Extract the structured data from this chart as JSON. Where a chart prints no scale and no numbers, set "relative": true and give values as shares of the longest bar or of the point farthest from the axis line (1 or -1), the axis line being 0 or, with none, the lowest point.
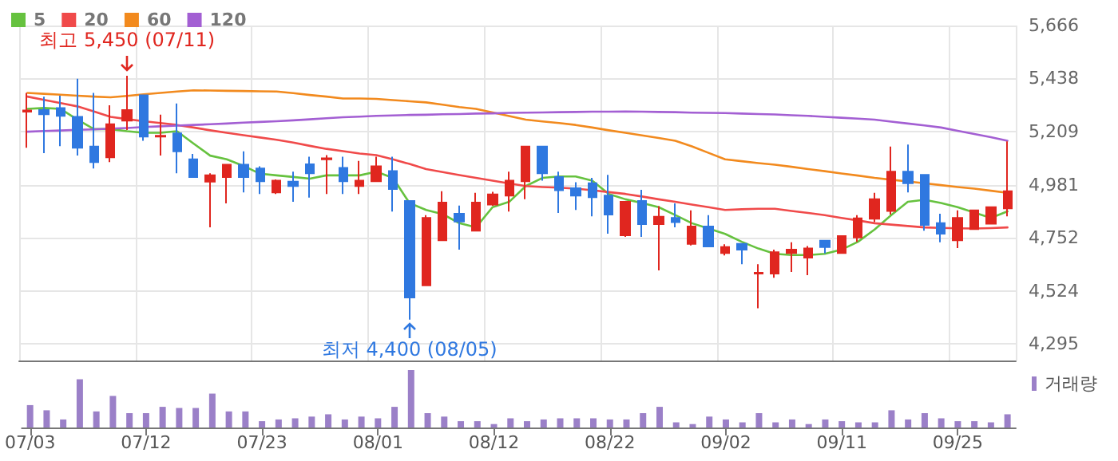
{
  "chart_data": [
    {
      "type": "candlestick",
      "categories": [
        null,
        null,
        null,
        null,
        null,
        null,
        null,
        null,
        null,
        null,
        null,
        null,
        null,
        null,
        null,
        null,
        null,
        null,
        null,
        null,
        null,
        null,
        null,
        null,
        null,
        null,
        null,
        null,
        null,
        null,
        null,
        null,
        null,
        null,
        null,
        null,
        null,
        null,
        null,
        null,
        null,
        null,
        null,
        null,
        null,
        null,
        null,
        null,
        null,
        null,
        null,
        null,
        null,
        null,
        null,
        null,
        null,
        null,
        null,
        null
      ],
      "ohlc": [
        [
          5295,
          5376,
          5140,
          5300
        ],
        [
          5302,
          5360,
          5117,
          5284
        ],
        [
          5311,
          5364,
          5147,
          5277
        ],
        [
          5273,
          5437,
          5106,
          5140
        ],
        [
          5145,
          5376,
          5051,
          5078
        ],
        [
          5099,
          5323,
          5078,
          5241
        ],
        [
          5257,
          5450,
          5216,
          5302
        ],
        [
          5366,
          5369,
          5170,
          5188
        ],
        [
          5188,
          5282,
          5106,
          5191
        ],
        [
          5202,
          5330,
          5030,
          5124
        ],
        [
          5090,
          5113,
          5010,
          5014
        ],
        [
          4994,
          5030,
          4797,
          5021
        ],
        [
          5014,
          5070,
          4900,
          5067
        ],
        [
          5067,
          5124,
          4948,
          5014
        ],
        [
          5051,
          5060,
          4941,
          4996
        ],
        [
          4948,
          5003,
          4941,
          4998
        ],
        [
          4994,
          5037,
          4907,
          4975
        ],
        [
          5069,
          5101,
          4925,
          5030
        ],
        [
          5090,
          5108,
          4941,
          5094
        ],
        [
          5053,
          5101,
          4941,
          4996
        ],
        [
          4975,
          5083,
          4941,
          4998
        ],
        [
          4996,
          5101,
          4994,
          5060
        ],
        [
          5039,
          5101,
          4865,
          4962
        ],
        [
          4911,
          4911,
          4400,
          4495
        ],
        [
          4548,
          4850,
          4548,
          4838
        ],
        [
          4742,
          4953,
          4742,
          4904
        ],
        [
          4856,
          4891,
          4701,
          4822
        ],
        [
          4783,
          4946,
          4783,
          4904
        ],
        [
          4895,
          4950,
          4890,
          4939
        ],
        [
          4934,
          5037,
          4865,
          4998
        ],
        [
          4996,
          5145,
          4918,
          5145
        ],
        [
          5145,
          5145,
          4998,
          5030
        ],
        [
          5014,
          5037,
          4859,
          4957
        ],
        [
          4966,
          4991,
          4872,
          4934
        ],
        [
          4987,
          5010,
          4845,
          4927
        ],
        [
          4934,
          5023,
          4770,
          4852
        ],
        [
          4763,
          4907,
          4756,
          4907
        ],
        [
          4911,
          4959,
          4756,
          4811
        ],
        [
          4811,
          4888,
          4612,
          4843
        ],
        [
          4838,
          4900,
          4797,
          4820
        ],
        [
          4726,
          4870,
          4719,
          4801
        ],
        [
          4801,
          4850,
          4715,
          4715
        ],
        [
          4687,
          4724,
          4676,
          4712
        ],
        [
          4726,
          4726,
          4639,
          4701
        ],
        [
          4598,
          4639,
          4449,
          4602
        ],
        [
          4598,
          4701,
          4580,
          4690
        ],
        [
          4687,
          4733,
          4605,
          4701
        ],
        [
          4667,
          4717,
          4591,
          4706
        ],
        [
          4740,
          4740,
          4685,
          4712
        ],
        [
          4687,
          4760,
          4687,
          4760
        ],
        [
          4754,
          4850,
          4735,
          4836
        ],
        [
          4834,
          4946,
          4820,
          4918
        ],
        [
          4868,
          5145,
          4852,
          5037
        ],
        [
          5037,
          5154,
          4948,
          4987
        ],
        [
          5023,
          5023,
          4783,
          4808
        ],
        [
          4815,
          4856,
          4733,
          4770
        ],
        [
          4742,
          4870,
          4708,
          4838
        ],
        [
          4790,
          4870,
          4790,
          4870
        ],
        [
          4813,
          4884,
          4813,
          4884
        ],
        [
          4879,
          5167,
          4845,
          4953
        ]
      ],
      "colors": [
        "#e0261f",
        "#2f78e0",
        "#2f78e0",
        "#2f78e0",
        "#2f78e0",
        "#e0261f",
        "#e0261f",
        "#2f78e0",
        "#e0261f",
        "#2f78e0",
        "#2f78e0",
        "#e0261f",
        "#e0261f",
        "#2f78e0",
        "#2f78e0",
        "#e0261f",
        "#2f78e0",
        "#2f78e0",
        "#e0261f",
        "#2f78e0",
        "#e0261f",
        "#e0261f",
        "#2f78e0",
        "#2f78e0",
        "#e0261f",
        "#e0261f",
        "#2f78e0",
        "#e0261f",
        "#e0261f",
        "#e0261f",
        "#e0261f",
        "#2f78e0",
        "#2f78e0",
        "#2f78e0",
        "#2f78e0",
        "#2f78e0",
        "#e0261f",
        "#2f78e0",
        "#e0261f",
        "#2f78e0",
        "#e0261f",
        "#2f78e0",
        "#e0261f",
        "#2f78e0",
        "#e0261f",
        "#e0261f",
        "#e0261f",
        "#e0261f",
        "#2f78e0",
        "#e0261f",
        "#e0261f",
        "#e0261f",
        "#e0261f",
        "#2f78e0",
        "#2f78e0",
        "#2f78e0",
        "#e0261f",
        "#e0261f",
        "#e0261f",
        "#e0261f"
      ],
      "series": [
        {
          "type": "line",
          "name": "5",
          "color": "#66c23f",
          "values": [
            5307,
            5311,
            5307,
            5261,
            5220,
            5220,
            5211,
            5204,
            5204,
            5211,
            5158,
            5106,
            5090,
            5062,
            5028,
            5021,
            5014,
            5007,
            5021,
            5021,
            5021,
            5037,
            5010,
            4902,
            4872,
            4854,
            4815,
            4797,
            4884,
            4907,
            4975,
            5010,
            5016,
            5016,
            4998,
            4941,
            4918,
            4902,
            4884,
            4850,
            4815,
            4792,
            4769,
            4735,
            4706,
            4683,
            4678,
            4678,
            4683,
            4701,
            4735,
            4788,
            4850,
            4907,
            4916,
            4902,
            4884,
            4861,
            4838,
            4866
          ]
        },
        {
          "type": "line",
          "name": "20",
          "color": "#f04a4a",
          "values": [
            5360,
            5346,
            5332,
            5318,
            5296,
            5273,
            5263,
            5254,
            5246,
            5238,
            5227,
            5215,
            5204,
            5194,
            5184,
            5174,
            5162,
            5148,
            5135,
            5125,
            5115,
            5108,
            5090,
            5070,
            5048,
            5035,
            5022,
            5010,
            4998,
            4986,
            4975,
            4971,
            4968,
            4964,
            4957,
            4949,
            4941,
            4930,
            4918,
            4907,
            4895,
            4884,
            4872,
            4875,
            4877,
            4877,
            4868,
            4859,
            4850,
            4838,
            4827,
            4815,
            4809,
            4803,
            4797,
            4795,
            4793,
            4792,
            4794,
            4797
          ]
        },
        {
          "type": "line",
          "name": "60",
          "color": "#f28a1e",
          "values": [
            5376,
            5372,
            5368,
            5364,
            5360,
            5357,
            5363,
            5370,
            5376,
            5382,
            5387,
            5386,
            5385,
            5384,
            5383,
            5382,
            5375,
            5367,
            5360,
            5352,
            5352,
            5350,
            5345,
            5340,
            5335,
            5325,
            5315,
            5307,
            5292,
            5276,
            5261,
            5253,
            5246,
            5238,
            5227,
            5215,
            5204,
            5193,
            5182,
            5170,
            5146,
            5118,
            5090,
            5082,
            5074,
            5067,
            5058,
            5048,
            5039,
            5029,
            5020,
            5010,
            5002,
            4995,
            4987,
            4979,
            4971,
            4964,
            4955,
            4946
          ]
        },
        {
          "type": "line",
          "name": "120",
          "color": "#a35fd3",
          "values": [
            5209,
            5212,
            5214,
            5217,
            5219,
            5222,
            5225,
            5229,
            5232,
            5235,
            5238,
            5241,
            5244,
            5248,
            5251,
            5254,
            5258,
            5262,
            5267,
            5271,
            5274,
            5277,
            5279,
            5281,
            5282,
            5284,
            5285,
            5287,
            5288,
            5290,
            5291,
            5292,
            5293,
            5294,
            5295,
            5295,
            5296,
            5295,
            5294,
            5293,
            5291,
            5290,
            5289,
            5287,
            5285,
            5283,
            5280,
            5277,
            5273,
            5269,
            5265,
            5261,
            5252,
            5244,
            5236,
            5227,
            5213,
            5199,
            5185,
            5170
          ]
        }
      ],
      "ylim": [
        4224,
        5666
      ],
      "yticks": [
        {
          "value": 4295,
          "label": "4,295"
        },
        {
          "value": 4524,
          "label": "4,524"
        },
        {
          "value": 4752,
          "label": "4,752"
        },
        {
          "value": 4981,
          "label": "4,981"
        },
        {
          "value": 5209,
          "label": "5,209"
        },
        {
          "value": 5438,
          "label": "5,438"
        },
        {
          "value": 5666,
          "label": "5,666"
        }
      ],
      "grid": true,
      "legend": "top left",
      "tick_labels": "y",
      "marker": "none",
      "line_style": "solid",
      "annotations": [
        {
          "text": "최고 5,450 (07/11)",
          "y": 5450
        },
        {
          "text": "최저 4,400 (08/05)",
          "y": 4400
        }
      ]
    },
    {
      "type": "bar",
      "categories": [
        "07/03",
        null,
        null,
        null,
        null,
        null,
        null,
        "07/12",
        null,
        null,
        null,
        null,
        null,
        null,
        "07/23",
        null,
        null,
        null,
        null,
        null,
        null,
        "08/01",
        null,
        null,
        null,
        null,
        null,
        null,
        "08/12",
        null,
        null,
        null,
        null,
        null,
        null,
        "08/22",
        null,
        null,
        null,
        null,
        null,
        null,
        "09/02",
        null,
        null,
        null,
        null,
        null,
        null,
        "09/11",
        null,
        null,
        null,
        null,
        null,
        null,
        "09/25",
        null,
        null,
        null
      ],
      "series": [
        {
          "name": "거래량",
          "color": "#9b80c8",
          "values": [
            0.39,
            0.3,
            0.14,
            0.84,
            0.28,
            0.55,
            0.25,
            0.25,
            0.36,
            0.34,
            0.34,
            0.59,
            0.28,
            0.28,
            0.11,
            0.14,
            0.16,
            0.19,
            0.23,
            0.14,
            0.19,
            0.16,
            0.36,
            1,
            0.25,
            0.19,
            0.11,
            0.11,
            0.06,
            0.16,
            0.11,
            0.14,
            0.16,
            0.16,
            0.16,
            0.14,
            0.14,
            0.25,
            0.36,
            0.09,
            0.06,
            0.19,
            0.14,
            0.09,
            0.25,
            0.09,
            0.14,
            0.06,
            0.14,
            0.11,
            0.09,
            0.09,
            0.3,
            0.14,
            0.25,
            0.16,
            0.11,
            0.11,
            0.09,
            0.23
          ]
        }
      ],
      "relative": true,
      "legend": "top right",
      "tick_labels": "x"
    }
  ]
}
